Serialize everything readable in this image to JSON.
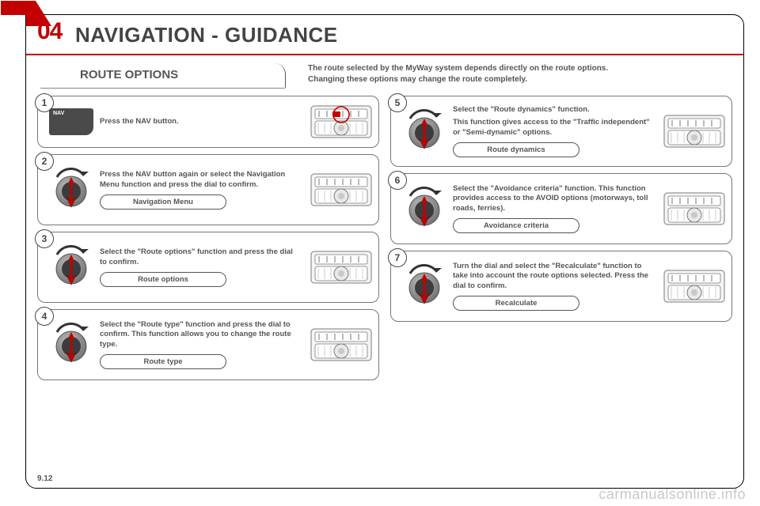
{
  "colors": {
    "accent": "#c30100",
    "ink": "#555555",
    "rule": "#777777",
    "dialRing": "#8d8d8d",
    "dialDark": "#3c3c3c",
    "arrow": "#c30100",
    "radioFrame": "#7a7a7a",
    "radioBg": "#f5f5f5"
  },
  "header": {
    "num": "04",
    "title": "NAVIGATION - GUIDANCE"
  },
  "tab": "ROUTE OPTIONS",
  "intro": {
    "line1": "The route selected by the MyWay system depends directly on the route options.",
    "line2": "Changing these options may change the route completely."
  },
  "left": [
    {
      "n": "1",
      "icon": "nav",
      "text": "Press the NAV button.",
      "button": null,
      "short": true,
      "highlight": true
    },
    {
      "n": "2",
      "icon": "dial",
      "text": "Press the NAV button again or select the Navigation Menu function and press the dial to confirm.",
      "button": "Navigation Menu"
    },
    {
      "n": "3",
      "icon": "dial",
      "text": "Select the \"Route options\" function and press the dial to confirm.",
      "button": "Route options"
    },
    {
      "n": "4",
      "icon": "dial",
      "text": "Select the \"Route type\" function and press the dial to confirm. This function allows you to change the route type.",
      "button": "Route type"
    }
  ],
  "right": [
    {
      "n": "5",
      "icon": "dial",
      "text": "Select the \"Route dynamics\" function.",
      "text2": "This function gives access to the \"Traffic independent\" or \"Semi-dynamic\" options.",
      "button": "Route dynamics"
    },
    {
      "n": "6",
      "icon": "dial",
      "text": "Select the \"Avoidance criteria\" function. This function provides access to the AVOID options (motorways, toll roads, ferries).",
      "button": "Avoidance criteria"
    },
    {
      "n": "7",
      "icon": "dial",
      "text": "Turn the dial and select the \"Recalculate\" function to take into account the route options selected. Press the dial to confirm.",
      "button": "Recalculate"
    }
  ],
  "page_number": "9.12",
  "watermark": "carmanualsonline.info"
}
